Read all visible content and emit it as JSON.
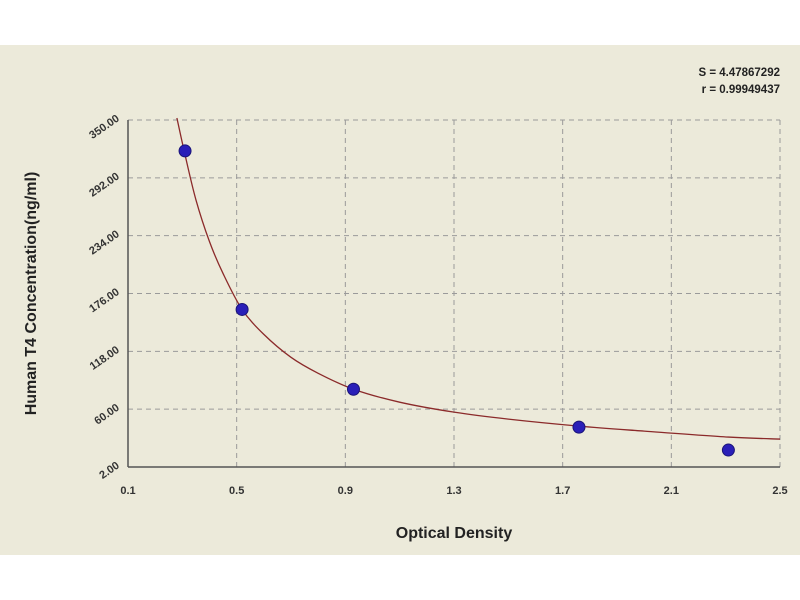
{
  "chart_data": {
    "type": "scatter",
    "xlabel": "Optical Density",
    "ylabel": "Human T4 Concentration(ng/ml)",
    "xlim": [
      0.1,
      2.5
    ],
    "ylim": [
      2.0,
      350.0
    ],
    "x_ticks": [
      "0.1",
      "0.5",
      "0.9",
      "1.3",
      "1.7",
      "2.1",
      "2.5"
    ],
    "y_ticks": [
      "2.00",
      "60.00",
      "118.00",
      "176.00",
      "234.00",
      "292.00",
      "350.00"
    ],
    "grid": true,
    "points": [
      {
        "x": 0.31,
        "y": 319
      },
      {
        "x": 0.52,
        "y": 160
      },
      {
        "x": 0.93,
        "y": 80
      },
      {
        "x": 1.76,
        "y": 42
      },
      {
        "x": 2.31,
        "y": 19
      }
    ],
    "curve": [
      {
        "x": 0.28,
        "y": 352
      },
      {
        "x": 0.31,
        "y": 315
      },
      {
        "x": 0.35,
        "y": 270
      },
      {
        "x": 0.4,
        "y": 228
      },
      {
        "x": 0.45,
        "y": 196
      },
      {
        "x": 0.52,
        "y": 160
      },
      {
        "x": 0.6,
        "y": 135
      },
      {
        "x": 0.7,
        "y": 112
      },
      {
        "x": 0.8,
        "y": 96
      },
      {
        "x": 0.93,
        "y": 80
      },
      {
        "x": 1.1,
        "y": 67
      },
      {
        "x": 1.3,
        "y": 57
      },
      {
        "x": 1.5,
        "y": 50
      },
      {
        "x": 1.76,
        "y": 43
      },
      {
        "x": 2.0,
        "y": 38
      },
      {
        "x": 2.31,
        "y": 32
      },
      {
        "x": 2.5,
        "y": 30
      }
    ],
    "stats": {
      "s": "S = 4.47867292",
      "r": "r = 0.99949437"
    },
    "colors": {
      "background": "#eceada",
      "curve": "#8b2a2a",
      "points": "#2a1fb8",
      "grid": "#9a9a9a",
      "axis": "#555555"
    }
  }
}
